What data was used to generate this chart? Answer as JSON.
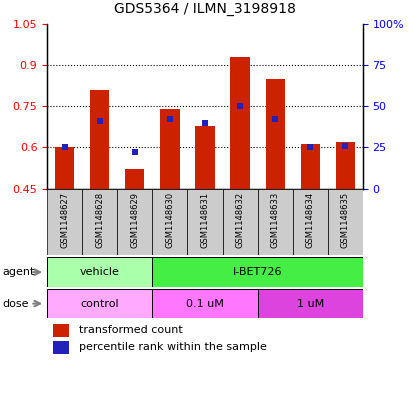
{
  "title": "GDS5364 / ILMN_3198918",
  "samples": [
    "GSM1148627",
    "GSM1148628",
    "GSM1148629",
    "GSM1148630",
    "GSM1148631",
    "GSM1148632",
    "GSM1148633",
    "GSM1148634",
    "GSM1148635"
  ],
  "transformed_count": [
    0.601,
    0.808,
    0.523,
    0.738,
    0.678,
    0.93,
    0.848,
    0.613,
    0.62
  ],
  "percentile_rank": [
    25.0,
    41.0,
    22.0,
    42.0,
    40.0,
    50.0,
    42.0,
    25.0,
    26.0
  ],
  "ylim_left": [
    0.45,
    1.05
  ],
  "ylim_right": [
    0,
    100
  ],
  "yticks_left": [
    0.45,
    0.6,
    0.75,
    0.9,
    1.05
  ],
  "yticks_right": [
    0,
    25,
    50,
    75,
    100
  ],
  "bar_color": "#cc2200",
  "dot_color": "#2222bb",
  "agent_labels": [
    {
      "label": "vehicle",
      "start": 0,
      "end": 3,
      "color": "#aaffaa"
    },
    {
      "label": "I-BET726",
      "start": 3,
      "end": 9,
      "color": "#44ee44"
    }
  ],
  "dose_labels": [
    {
      "label": "control",
      "start": 0,
      "end": 3,
      "color": "#ffaaff"
    },
    {
      "label": "0.1 uM",
      "start": 3,
      "end": 6,
      "color": "#ff77ff"
    },
    {
      "label": "1 uM",
      "start": 6,
      "end": 9,
      "color": "#dd44dd"
    }
  ],
  "legend_red": "transformed count",
  "legend_blue": "percentile rank within the sample",
  "bar_width": 0.55,
  "baseline": 0.45,
  "grid_yticks": [
    0.6,
    0.75,
    0.9
  ]
}
